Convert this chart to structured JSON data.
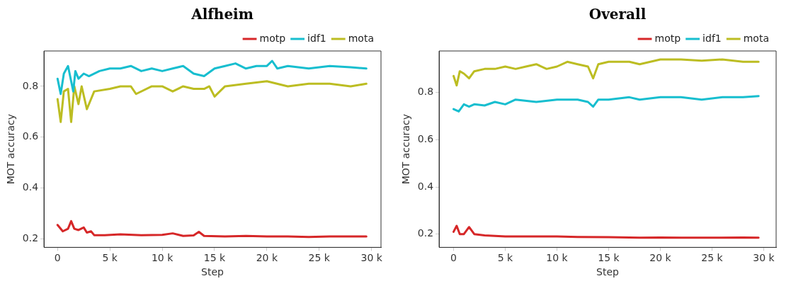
{
  "chart_data": [
    {
      "type": "line",
      "title": "Alfheim",
      "xlabel": "Step",
      "ylabel": "MOT accuracy",
      "xlim": [
        -1300,
        30900
      ],
      "ylim": [
        0.167,
        0.939
      ],
      "xticks": [
        {
          "value": 0,
          "label": "0"
        },
        {
          "value": 5000,
          "label": "5 k"
        },
        {
          "value": 10000,
          "label": "10 k"
        },
        {
          "value": 15000,
          "label": "15 k"
        },
        {
          "value": 20000,
          "label": "20 k"
        },
        {
          "value": 25000,
          "label": "25 k"
        },
        {
          "value": 30000,
          "label": "30 k"
        }
      ],
      "yticks": [
        0.2,
        0.4,
        0.6,
        0.8
      ],
      "legend": "top right",
      "grid": false,
      "marker": "none",
      "line_style": "solid",
      "series": [
        {
          "name": "motp",
          "color": "#d62728",
          "x": [
            0,
            500,
            1000,
            1300,
            1600,
            2000,
            2500,
            2800,
            3200,
            3500,
            4500,
            6000,
            8000,
            10000,
            11000,
            12000,
            13000,
            13500,
            14000,
            16000,
            18000,
            20000,
            22000,
            24000,
            26000,
            28000,
            29500
          ],
          "values": [
            0.255,
            0.23,
            0.24,
            0.27,
            0.24,
            0.235,
            0.245,
            0.225,
            0.23,
            0.215,
            0.215,
            0.218,
            0.215,
            0.216,
            0.222,
            0.212,
            0.214,
            0.228,
            0.212,
            0.21,
            0.212,
            0.21,
            0.21,
            0.208,
            0.21,
            0.21,
            0.21
          ]
        },
        {
          "name": "idf1",
          "color": "#17becf",
          "x": [
            0,
            300,
            600,
            1000,
            1300,
            1500,
            1700,
            2000,
            2500,
            3000,
            4000,
            5000,
            6000,
            7000,
            8000,
            9000,
            10000,
            11000,
            12000,
            13000,
            14000,
            15000,
            16000,
            17000,
            18000,
            19000,
            20000,
            20500,
            21000,
            22000,
            24000,
            26000,
            28000,
            29500
          ],
          "values": [
            0.83,
            0.77,
            0.85,
            0.88,
            0.82,
            0.78,
            0.86,
            0.83,
            0.85,
            0.84,
            0.86,
            0.87,
            0.87,
            0.88,
            0.86,
            0.87,
            0.86,
            0.87,
            0.88,
            0.85,
            0.84,
            0.87,
            0.88,
            0.89,
            0.87,
            0.88,
            0.88,
            0.9,
            0.87,
            0.88,
            0.87,
            0.88,
            0.875,
            0.87
          ]
        },
        {
          "name": "mota",
          "color": "#bcbd22",
          "x": [
            0,
            300,
            600,
            1000,
            1300,
            1600,
            2000,
            2300,
            2800,
            3500,
            5000,
            6000,
            7000,
            7500,
            9000,
            10000,
            11000,
            12000,
            13000,
            14000,
            14500,
            15000,
            16000,
            18000,
            20000,
            22000,
            24000,
            26000,
            28000,
            29500
          ],
          "values": [
            0.75,
            0.66,
            0.78,
            0.79,
            0.66,
            0.8,
            0.73,
            0.8,
            0.71,
            0.78,
            0.79,
            0.8,
            0.8,
            0.77,
            0.8,
            0.8,
            0.78,
            0.8,
            0.79,
            0.79,
            0.8,
            0.76,
            0.8,
            0.81,
            0.82,
            0.8,
            0.81,
            0.81,
            0.8,
            0.81
          ]
        }
      ]
    },
    {
      "type": "line",
      "title": "Overall",
      "xlabel": "Step",
      "ylabel": "MOT accuracy",
      "xlim": [
        -1400,
        31200
      ],
      "ylim": [
        0.144,
        0.976
      ],
      "xticks": [
        {
          "value": 0,
          "label": "0"
        },
        {
          "value": 5000,
          "label": "5 k"
        },
        {
          "value": 10000,
          "label": "10 k"
        },
        {
          "value": 15000,
          "label": "15 k"
        },
        {
          "value": 20000,
          "label": "20 k"
        },
        {
          "value": 25000,
          "label": "25 k"
        },
        {
          "value": 30000,
          "label": "30 k"
        }
      ],
      "yticks": [
        0.2,
        0.4,
        0.6,
        0.8
      ],
      "legend": "top right",
      "grid": false,
      "marker": "none",
      "line_style": "solid",
      "series": [
        {
          "name": "motp",
          "color": "#d62728",
          "x": [
            0,
            300,
            600,
            1000,
            1500,
            2000,
            3000,
            5000,
            7000,
            10000,
            12000,
            15000,
            18000,
            20000,
            22000,
            25000,
            28000,
            29500
          ],
          "values": [
            0.21,
            0.235,
            0.2,
            0.2,
            0.23,
            0.2,
            0.195,
            0.19,
            0.19,
            0.19,
            0.188,
            0.187,
            0.185,
            0.186,
            0.185,
            0.185,
            0.186,
            0.185
          ]
        },
        {
          "name": "idf1",
          "color": "#17becf",
          "x": [
            0,
            500,
            1000,
            1500,
            2000,
            3000,
            4000,
            5000,
            6000,
            8000,
            10000,
            12000,
            13000,
            13500,
            14000,
            15000,
            17000,
            18000,
            20000,
            22000,
            24000,
            26000,
            28000,
            29500
          ],
          "values": [
            0.73,
            0.72,
            0.75,
            0.74,
            0.75,
            0.745,
            0.76,
            0.75,
            0.77,
            0.76,
            0.77,
            0.77,
            0.76,
            0.74,
            0.77,
            0.77,
            0.78,
            0.77,
            0.78,
            0.78,
            0.77,
            0.78,
            0.78,
            0.785
          ]
        },
        {
          "name": "mota",
          "color": "#bcbd22",
          "x": [
            0,
            300,
            600,
            1000,
            1500,
            2000,
            3000,
            4000,
            5000,
            6000,
            7000,
            8000,
            9000,
            10000,
            11000,
            12000,
            13000,
            13500,
            14000,
            15000,
            17000,
            18000,
            20000,
            22000,
            24000,
            26000,
            28000,
            29500
          ],
          "values": [
            0.87,
            0.83,
            0.89,
            0.88,
            0.86,
            0.89,
            0.9,
            0.9,
            0.91,
            0.9,
            0.91,
            0.92,
            0.9,
            0.91,
            0.93,
            0.92,
            0.91,
            0.86,
            0.92,
            0.93,
            0.93,
            0.92,
            0.94,
            0.94,
            0.935,
            0.94,
            0.93,
            0.93
          ]
        }
      ]
    }
  ]
}
